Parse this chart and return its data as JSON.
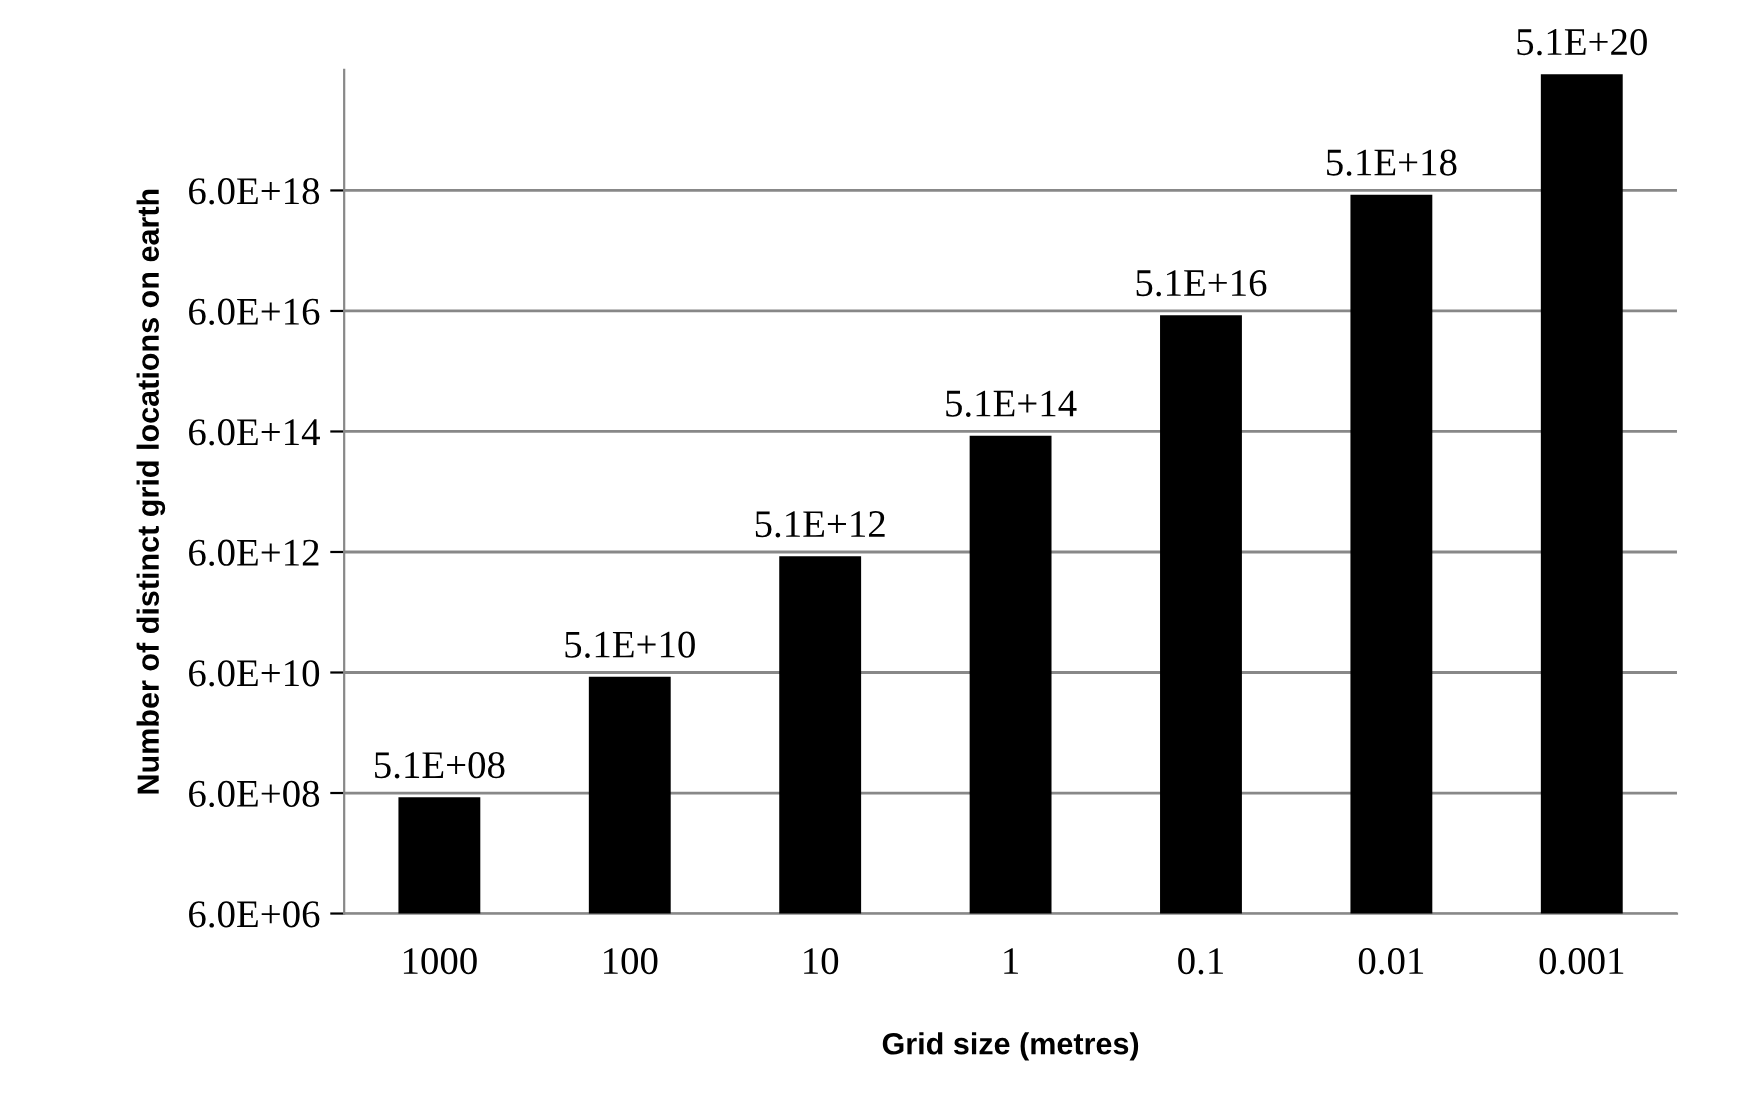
{
  "chart_data": {
    "type": "bar",
    "xlabel": "Grid size (metres)",
    "ylabel": "Number of distinct grid locations on earth",
    "categories": [
      "1000",
      "100",
      "10",
      "1",
      "0.1",
      "0.01",
      "0.001"
    ],
    "values": [
      510000000.0,
      51000000000.0,
      5100000000000.0,
      510000000000000.0,
      5.1e+16,
      5.1e+18,
      5.1e+20
    ],
    "value_labels": [
      "5.1E+08",
      "5.1E+10",
      "5.1E+12",
      "5.1E+14",
      "5.1E+16",
      "5.1E+18",
      "5.1E+20"
    ],
    "color": "#000000",
    "log": "y",
    "ylim": [
      6000000.0,
      6e+20
    ],
    "yticks": [
      {
        "value": 6000000.0,
        "label": "6.0E+06"
      },
      {
        "value": 600000000.0,
        "label": "6.0E+08"
      },
      {
        "value": 60000000000.0,
        "label": "6.0E+10"
      },
      {
        "value": 6000000000000.0,
        "label": "6.0E+12"
      },
      {
        "value": 600000000000000.0,
        "label": "6.0E+14"
      },
      {
        "value": 6e+16,
        "label": "6.0E+16"
      },
      {
        "value": 6e+18,
        "label": "6.0E+18"
      }
    ],
    "grid": "y",
    "legend": false
  }
}
